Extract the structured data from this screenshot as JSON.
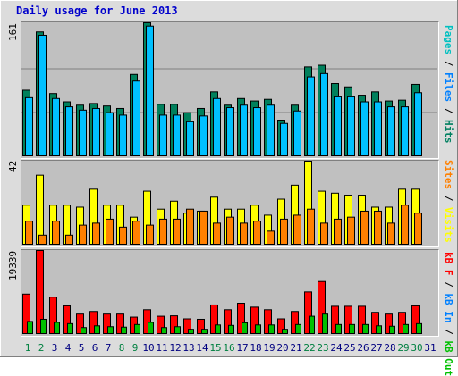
{
  "chart_data": [
    {
      "type": "bar",
      "title": "Daily usage for June 2013",
      "panel": "pages-files-hits",
      "max_label": "161",
      "ylim": [
        0,
        161
      ],
      "categories": [
        "1",
        "2",
        "3",
        "4",
        "5",
        "6",
        "7",
        "8",
        "9",
        "10",
        "11",
        "12",
        "13",
        "14",
        "15",
        "16",
        "17",
        "18",
        "19",
        "20",
        "21",
        "22",
        "23",
        "24",
        "25",
        "26",
        "27",
        "28",
        "29",
        "30",
        "31"
      ],
      "series": [
        {
          "name": "Hits",
          "color": "#00805c",
          "values": [
            80,
            150,
            76,
            66,
            62,
            64,
            61,
            58,
            99,
            161,
            63,
            63,
            53,
            58,
            78,
            62,
            70,
            67,
            69,
            44,
            62,
            108,
            110,
            88,
            84,
            74,
            78,
            67,
            68,
            87,
            0
          ]
        },
        {
          "name": "Files",
          "color": "#00c0ff",
          "values": [
            71,
            146,
            70,
            60,
            56,
            58,
            53,
            50,
            91,
            157,
            50,
            50,
            42,
            49,
            70,
            59,
            62,
            59,
            62,
            40,
            55,
            96,
            100,
            72,
            72,
            66,
            66,
            60,
            60,
            77,
            0
          ]
        },
        {
          "name": "Pages",
          "color": "#00c0ff",
          "values": [
            0,
            0,
            0,
            0,
            0,
            0,
            0,
            0,
            0,
            0,
            0,
            0,
            0,
            0,
            0,
            0,
            0,
            0,
            0,
            0,
            0,
            0,
            0,
            0,
            0,
            0,
            0,
            0,
            0,
            0,
            0
          ]
        }
      ]
    },
    {
      "type": "bar",
      "panel": "visits-sites",
      "max_label": "42",
      "ylim": [
        0,
        42
      ],
      "categories": [
        "1",
        "2",
        "3",
        "4",
        "5",
        "6",
        "7",
        "8",
        "9",
        "10",
        "11",
        "12",
        "13",
        "14",
        "15",
        "16",
        "17",
        "18",
        "19",
        "20",
        "21",
        "22",
        "23",
        "24",
        "25",
        "26",
        "27",
        "28",
        "29",
        "30",
        "31"
      ],
      "series": [
        {
          "name": "Visits",
          "color": "#ffff00",
          "values": [
            20,
            35,
            20,
            20,
            19,
            28,
            20,
            20,
            14,
            27,
            18,
            22,
            16,
            17,
            24,
            18,
            18,
            20,
            15,
            23,
            30,
            42,
            27,
            26,
            25,
            25,
            19,
            19,
            28,
            28,
            0
          ]
        },
        {
          "name": "Sites",
          "color": "#ff8000",
          "values": [
            12,
            5,
            12,
            5,
            10,
            11,
            13,
            9,
            12,
            10,
            13,
            13,
            18,
            17,
            11,
            14,
            11,
            12,
            7,
            13,
            15,
            18,
            11,
            13,
            14,
            17,
            17,
            11,
            20,
            16,
            0
          ]
        }
      ]
    },
    {
      "type": "bar",
      "panel": "kb",
      "max_label": "19339",
      "ylim": [
        0,
        19339
      ],
      "categories": [
        "1",
        "2",
        "3",
        "4",
        "5",
        "6",
        "7",
        "8",
        "9",
        "10",
        "11",
        "12",
        "13",
        "14",
        "15",
        "16",
        "17",
        "18",
        "19",
        "20",
        "21",
        "22",
        "23",
        "24",
        "25",
        "26",
        "27",
        "28",
        "29",
        "30",
        "31"
      ],
      "series": [
        {
          "name": "KB F",
          "color": "#ff0000",
          "values": [
            9300,
            19339,
            8600,
            6600,
            4700,
            5300,
            4700,
            4700,
            4000,
            5700,
            4200,
            4300,
            3600,
            3500,
            6800,
            5700,
            7200,
            6300,
            5700,
            3600,
            5300,
            9800,
            12200,
            6500,
            6500,
            6500,
            5100,
            4700,
            5100,
            6600,
            0
          ]
        },
        {
          "name": "KB In",
          "color": "#0080ff",
          "values": [
            0,
            0,
            0,
            0,
            0,
            0,
            0,
            0,
            0,
            0,
            0,
            0,
            0,
            0,
            0,
            0,
            0,
            0,
            0,
            0,
            0,
            0,
            0,
            0,
            0,
            0,
            0,
            0,
            0,
            0,
            0
          ]
        },
        {
          "name": "KB Out",
          "color": "#00c000",
          "values": [
            3000,
            3500,
            2800,
            2500,
            1600,
            2000,
            1800,
            1700,
            2300,
            2800,
            1600,
            1800,
            1200,
            1200,
            2200,
            2100,
            2700,
            2200,
            2200,
            1200,
            2300,
            4200,
            4700,
            2300,
            2300,
            2300,
            2000,
            1900,
            2300,
            2500,
            0
          ]
        }
      ]
    }
  ],
  "legend_top": [
    {
      "text": "Pages",
      "color": "#00c0c0"
    },
    {
      "text": " / ",
      "color": "#000000"
    },
    {
      "text": "Files",
      "color": "#0080ff"
    },
    {
      "text": " / ",
      "color": "#000000"
    },
    {
      "text": "Hits",
      "color": "#008060"
    }
  ],
  "legend_mid": [
    {
      "text": "Sites",
      "color": "#ff8000"
    },
    {
      "text": " / ",
      "color": "#000000"
    },
    {
      "text": "Visits",
      "color": "#ffff00"
    }
  ],
  "legend_bot": [
    {
      "text": "kB F",
      "color": "#ff0000"
    },
    {
      "text": " / ",
      "color": "#000000"
    },
    {
      "text": "kB In",
      "color": "#0080ff"
    },
    {
      "text": " / ",
      "color": "#000000"
    },
    {
      "text": "kB Out",
      "color": "#00c000"
    }
  ],
  "weekend_color": "#008040",
  "weekday_color": "#000080",
  "weekend_days": [
    1,
    2,
    8,
    9,
    15,
    16,
    22,
    23,
    29,
    30
  ]
}
